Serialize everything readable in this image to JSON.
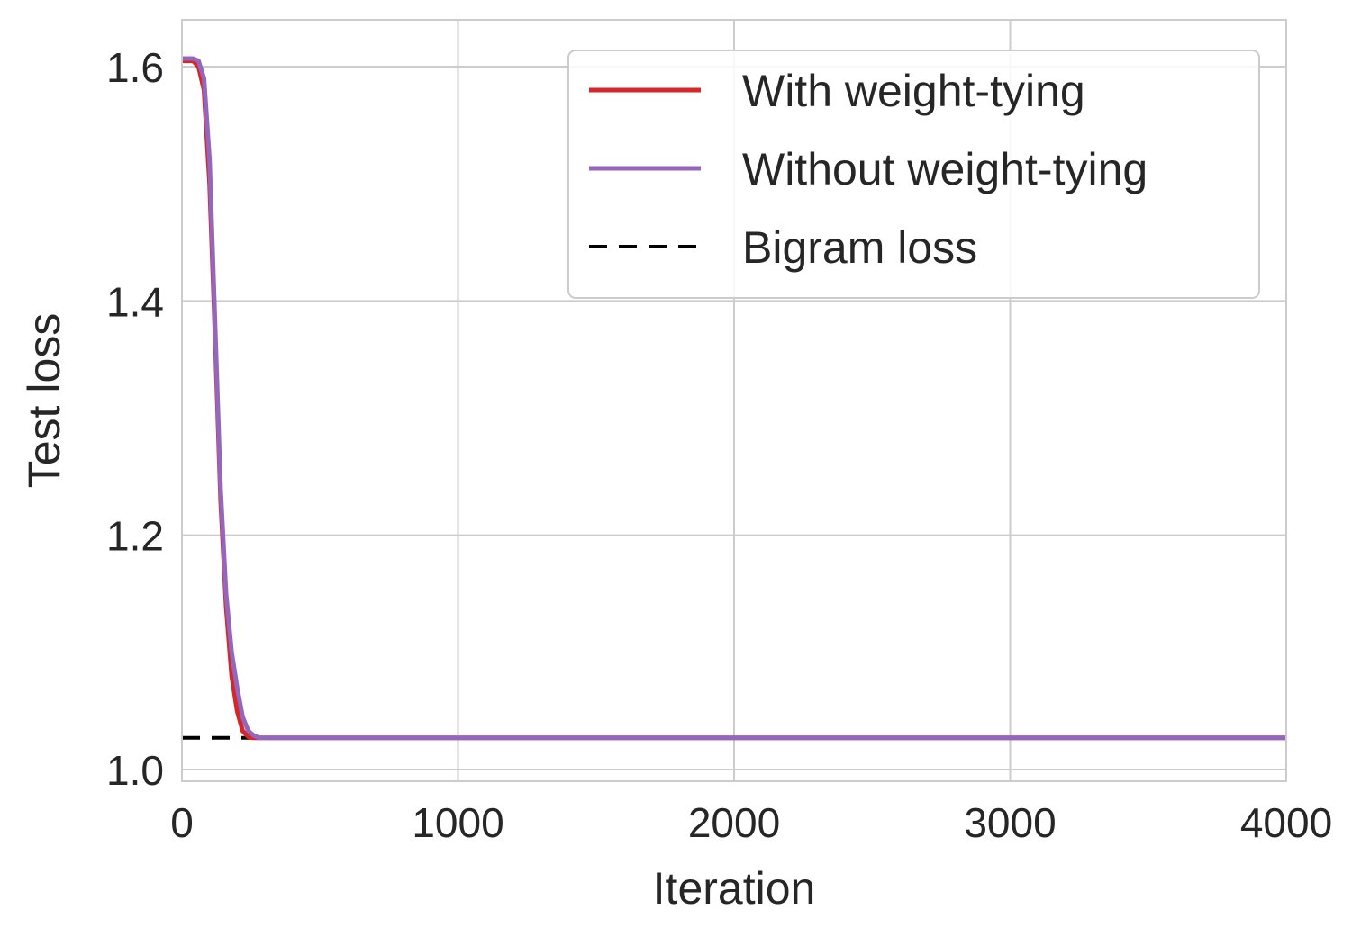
{
  "chart_data": {
    "type": "line",
    "title": "",
    "xlabel": "Iteration",
    "ylabel": "Test loss",
    "xlim": [
      0,
      4000
    ],
    "ylim": [
      0.99,
      1.64
    ],
    "xticks": [
      0,
      1000,
      2000,
      3000,
      4000
    ],
    "xtick_labels": [
      "0",
      "1000",
      "2000",
      "3000",
      "4000"
    ],
    "yticks": [
      1.0,
      1.2,
      1.4,
      1.6
    ],
    "ytick_labels": [
      "1.0",
      "1.2",
      "1.4",
      "1.6"
    ],
    "grid": true,
    "legend_position": "top-right",
    "series": [
      {
        "name": "With weight-tying",
        "color": "#d62728",
        "style": "solid",
        "x": [
          0,
          40,
          60,
          80,
          100,
          120,
          140,
          160,
          180,
          200,
          220,
          240,
          260,
          300,
          400,
          600,
          800,
          1000,
          1500,
          2000,
          2500,
          3000,
          3500,
          4000
        ],
        "y": [
          1.605,
          1.605,
          1.6,
          1.58,
          1.5,
          1.37,
          1.23,
          1.14,
          1.08,
          1.05,
          1.033,
          1.028,
          1.027,
          1.027,
          1.027,
          1.027,
          1.027,
          1.027,
          1.027,
          1.027,
          1.027,
          1.027,
          1.027,
          1.027
        ]
      },
      {
        "name": "Without weight-tying",
        "color": "#9467bd",
        "style": "solid",
        "x": [
          0,
          40,
          60,
          80,
          100,
          120,
          140,
          160,
          180,
          200,
          220,
          240,
          260,
          280,
          300,
          400,
          600,
          800,
          1000,
          1500,
          2000,
          2500,
          3000,
          3500,
          4000
        ],
        "y": [
          1.607,
          1.607,
          1.605,
          1.59,
          1.52,
          1.38,
          1.24,
          1.15,
          1.1,
          1.07,
          1.045,
          1.033,
          1.029,
          1.027,
          1.027,
          1.027,
          1.027,
          1.027,
          1.027,
          1.027,
          1.027,
          1.027,
          1.027,
          1.027,
          1.027
        ]
      },
      {
        "name": "Bigram loss",
        "color": "#000000",
        "style": "dashed",
        "x": [
          0,
          4000
        ],
        "y": [
          1.027,
          1.027
        ]
      }
    ]
  }
}
